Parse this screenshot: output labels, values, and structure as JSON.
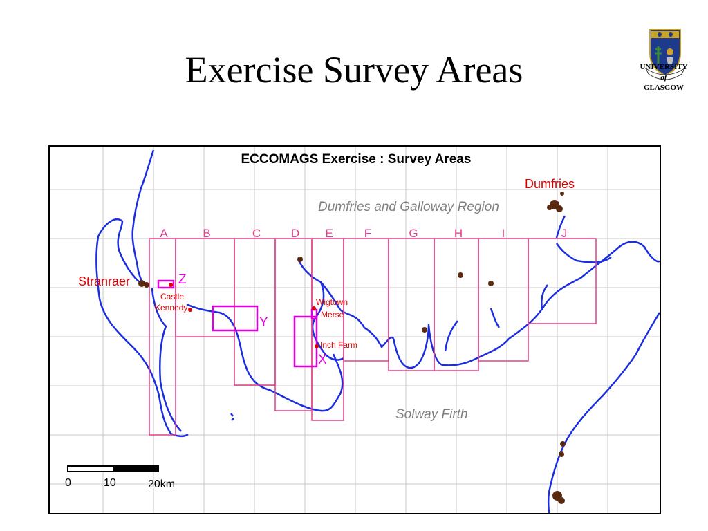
{
  "slide": {
    "title": "Exercise Survey Areas"
  },
  "logo": {
    "line1": "UNIVERSITY",
    "line2": "of",
    "line3": "GLASGOW"
  },
  "map": {
    "title": "ECCOMAGS Exercise : Survey Areas",
    "region_label": "Dumfries and Galloway Region",
    "sea_label": "Solway Firth",
    "towns": {
      "dumfries": "Dumfries",
      "stranraer": "Stranraer",
      "castle_kennedy_1": "Castle",
      "castle_kennedy_2": "Kennedy",
      "wigtown_1": "Wigtown",
      "wigtown_2": "Merse",
      "inch_farm": "Inch Farm"
    },
    "strip_labels": [
      "A",
      "B",
      "C",
      "D",
      "E",
      "F",
      "G",
      "H",
      "I",
      "J"
    ],
    "site_labels": {
      "z": "Z",
      "y": "Y",
      "x": "X"
    },
    "scale": {
      "t0": "0",
      "t10": "10",
      "t20": "20km"
    },
    "colors": {
      "coast": "#1a2de0",
      "strips": "#e0408a",
      "sites": "#dd00dd",
      "town_label": "#dd0000",
      "region_label": "#808080"
    }
  }
}
